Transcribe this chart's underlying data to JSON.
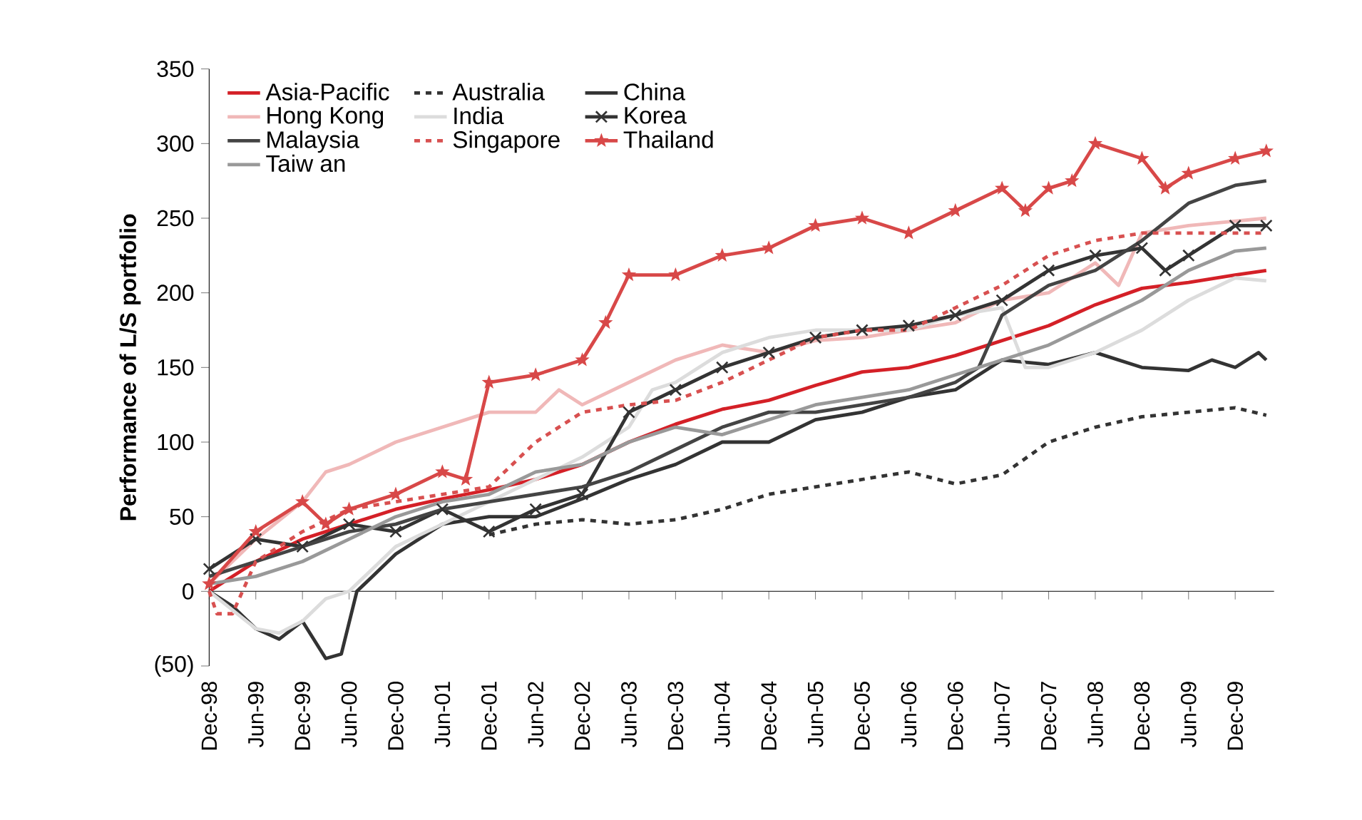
{
  "chart_data": {
    "type": "line",
    "ylabel": "Performance of L/S portfolio",
    "legend": "top left",
    "xlim": [
      "1998-12",
      "2010-05"
    ],
    "xticks": [
      {
        "value": "1998-12",
        "label": "Dec-98"
      },
      {
        "value": "1999-06",
        "label": "Jun-99"
      },
      {
        "value": "1999-12",
        "label": "Dec-99"
      },
      {
        "value": "2000-06",
        "label": "Jun-00"
      },
      {
        "value": "2000-12",
        "label": "Dec-00"
      },
      {
        "value": "2001-06",
        "label": "Jun-01"
      },
      {
        "value": "2001-12",
        "label": "Dec-01"
      },
      {
        "value": "2002-06",
        "label": "Jun-02"
      },
      {
        "value": "2002-12",
        "label": "Dec-02"
      },
      {
        "value": "2003-06",
        "label": "Jun-03"
      },
      {
        "value": "2003-12",
        "label": "Dec-03"
      },
      {
        "value": "2004-06",
        "label": "Jun-04"
      },
      {
        "value": "2004-12",
        "label": "Dec-04"
      },
      {
        "value": "2005-06",
        "label": "Jun-05"
      },
      {
        "value": "2005-12",
        "label": "Dec-05"
      },
      {
        "value": "2006-06",
        "label": "Jun-06"
      },
      {
        "value": "2006-12",
        "label": "Dec-06"
      },
      {
        "value": "2007-06",
        "label": "Jun-07"
      },
      {
        "value": "2007-12",
        "label": "Dec-07"
      },
      {
        "value": "2008-06",
        "label": "Jun-08"
      },
      {
        "value": "2008-12",
        "label": "Dec-08"
      },
      {
        "value": "2009-06",
        "label": "Jun-09"
      },
      {
        "value": "2009-12",
        "label": "Dec-09"
      }
    ],
    "ylim": [
      -50,
      350
    ],
    "yticks": [
      {
        "value": -50,
        "label": "(50)"
      },
      0,
      50,
      100,
      150,
      200,
      250,
      300,
      350
    ],
    "series": [
      {
        "name": "Asia-Pacific",
        "color": "#d42027",
        "x": [
          "1998-12",
          "1999-06",
          "1999-12",
          "2000-06",
          "2000-12",
          "2001-06",
          "2001-12",
          "2002-06",
          "2002-12",
          "2003-06",
          "2003-12",
          "2004-06",
          "2004-12",
          "2005-06",
          "2005-12",
          "2006-06",
          "2006-12",
          "2007-06",
          "2007-12",
          "2008-06",
          "2008-12",
          "2009-06",
          "2009-12",
          "2010-04"
        ],
        "values": [
          0,
          20,
          35,
          45,
          55,
          62,
          68,
          75,
          85,
          100,
          112,
          122,
          128,
          138,
          147,
          150,
          158,
          168,
          178,
          192,
          203,
          207,
          212,
          215
        ]
      },
      {
        "name": "Australia",
        "color": "#333333",
        "line_style": "dashed",
        "x": [
          "2001-12",
          "2002-06",
          "2002-12",
          "2003-06",
          "2003-12",
          "2004-06",
          "2004-12",
          "2005-06",
          "2005-12",
          "2006-06",
          "2006-12",
          "2007-06",
          "2007-12",
          "2008-06",
          "2008-12",
          "2009-06",
          "2009-12",
          "2010-04"
        ],
        "values": [
          38,
          45,
          48,
          45,
          48,
          55,
          65,
          70,
          75,
          80,
          72,
          78,
          100,
          110,
          117,
          120,
          123,
          118
        ]
      },
      {
        "name": "China",
        "color": "#333333",
        "x": [
          "1998-12",
          "1999-03",
          "1999-06",
          "1999-09",
          "1999-12",
          "2000-03",
          "2000-05",
          "2000-07",
          "2000-09",
          "2000-12",
          "2001-06",
          "2001-12",
          "2002-06",
          "2002-12",
          "2003-06",
          "2003-12",
          "2004-06",
          "2004-12",
          "2005-06",
          "2005-12",
          "2006-06",
          "2006-12",
          "2007-06",
          "2007-12",
          "2008-06",
          "2008-12",
          "2009-06",
          "2009-09",
          "2009-12",
          "2010-03",
          "2010-04"
        ],
        "values": [
          0,
          -10,
          -25,
          -32,
          -20,
          -45,
          -42,
          0,
          10,
          25,
          45,
          50,
          50,
          62,
          75,
          85,
          100,
          100,
          115,
          120,
          130,
          135,
          155,
          152,
          160,
          150,
          148,
          155,
          150,
          160,
          155
        ]
      },
      {
        "name": "Hong Kong",
        "color": "#f0b8b8",
        "x": [
          "1998-12",
          "1999-06",
          "1999-12",
          "2000-03",
          "2000-06",
          "2000-12",
          "2001-06",
          "2001-12",
          "2002-06",
          "2002-09",
          "2002-12",
          "2003-06",
          "2003-12",
          "2004-06",
          "2004-12",
          "2005-06",
          "2005-12",
          "2006-06",
          "2006-12",
          "2007-06",
          "2007-12",
          "2008-06",
          "2008-09",
          "2008-12",
          "2009-06",
          "2009-12",
          "2010-04"
        ],
        "values": [
          5,
          35,
          60,
          80,
          85,
          100,
          110,
          120,
          120,
          135,
          125,
          140,
          155,
          165,
          160,
          168,
          170,
          175,
          180,
          195,
          200,
          220,
          205,
          240,
          245,
          248,
          250
        ]
      },
      {
        "name": "India",
        "color": "#dcdcdc",
        "x": [
          "1998-12",
          "1999-06",
          "1999-09",
          "1999-12",
          "2000-03",
          "2000-06",
          "2000-09",
          "2000-12",
          "2001-06",
          "2001-12",
          "2002-06",
          "2002-12",
          "2003-06",
          "2003-09",
          "2003-12",
          "2004-06",
          "2004-12",
          "2005-06",
          "2005-12",
          "2006-06",
          "2006-12",
          "2007-06",
          "2007-09",
          "2007-12",
          "2008-06",
          "2008-12",
          "2009-06",
          "2009-12",
          "2010-04"
        ],
        "values": [
          0,
          -25,
          -28,
          -20,
          -5,
          0,
          15,
          30,
          45,
          60,
          75,
          90,
          110,
          135,
          140,
          160,
          170,
          175,
          175,
          175,
          185,
          190,
          150,
          150,
          160,
          175,
          195,
          210,
          208
        ]
      },
      {
        "name": "Korea",
        "color": "#333333",
        "marker": "cross",
        "x": [
          "1998-12",
          "1999-06",
          "1999-12",
          "2000-06",
          "2000-12",
          "2001-06",
          "2001-12",
          "2002-06",
          "2002-12",
          "2003-06",
          "2003-12",
          "2004-06",
          "2004-12",
          "2005-06",
          "2005-12",
          "2006-06",
          "2006-12",
          "2007-06",
          "2007-12",
          "2008-06",
          "2008-12",
          "2009-03",
          "2009-06",
          "2009-12",
          "2010-04"
        ],
        "values": [
          15,
          35,
          30,
          45,
          40,
          55,
          40,
          55,
          65,
          120,
          135,
          150,
          160,
          170,
          175,
          178,
          185,
          195,
          215,
          225,
          230,
          215,
          225,
          245,
          245
        ]
      },
      {
        "name": "Malaysia",
        "color": "#444444",
        "x": [
          "1998-12",
          "1999-06",
          "1999-12",
          "2000-06",
          "2000-12",
          "2001-06",
          "2001-12",
          "2002-06",
          "2002-12",
          "2003-06",
          "2003-12",
          "2004-06",
          "2004-12",
          "2005-06",
          "2005-12",
          "2006-06",
          "2006-12",
          "2007-03",
          "2007-06",
          "2007-12",
          "2008-06",
          "2008-12",
          "2009-06",
          "2009-12",
          "2010-04"
        ],
        "values": [
          10,
          20,
          30,
          40,
          45,
          55,
          60,
          65,
          70,
          80,
          95,
          110,
          120,
          120,
          125,
          130,
          140,
          150,
          185,
          205,
          215,
          235,
          260,
          272,
          275
        ]
      },
      {
        "name": "Singapore",
        "color": "#d85050",
        "line_style": "dashed",
        "x": [
          "1998-12",
          "1999-01",
          "1999-03",
          "1999-06",
          "1999-12",
          "2000-06",
          "2000-12",
          "2001-06",
          "2001-12",
          "2002-06",
          "2002-12",
          "2003-06",
          "2003-12",
          "2004-06",
          "2004-12",
          "2005-06",
          "2005-12",
          "2006-06",
          "2006-12",
          "2007-06",
          "2007-09",
          "2007-12",
          "2008-06",
          "2008-12",
          "2009-06",
          "2009-12",
          "2010-04"
        ],
        "values": [
          0,
          -15,
          -15,
          20,
          40,
          55,
          60,
          65,
          70,
          100,
          120,
          125,
          128,
          140,
          155,
          170,
          175,
          175,
          190,
          205,
          215,
          225,
          235,
          240,
          240,
          240,
          240
        ]
      },
      {
        "name": "Thailand",
        "color": "#d84848",
        "marker": "star",
        "x": [
          "1998-12",
          "1999-06",
          "1999-12",
          "2000-03",
          "2000-06",
          "2000-12",
          "2001-06",
          "2001-09",
          "2001-12",
          "2002-06",
          "2002-12",
          "2003-03",
          "2003-06",
          "2003-12",
          "2004-06",
          "2004-12",
          "2005-06",
          "2005-12",
          "2006-06",
          "2006-12",
          "2007-06",
          "2007-09",
          "2007-12",
          "2008-03",
          "2008-06",
          "2008-12",
          "2009-03",
          "2009-06",
          "2009-12",
          "2010-04"
        ],
        "values": [
          5,
          40,
          60,
          45,
          55,
          65,
          80,
          75,
          140,
          145,
          155,
          180,
          212,
          212,
          225,
          230,
          245,
          250,
          240,
          255,
          270,
          255,
          270,
          275,
          300,
          290,
          270,
          280,
          290,
          295
        ]
      },
      {
        "name": "Taiw an",
        "color": "#999999",
        "x": [
          "1998-12",
          "1999-06",
          "1999-12",
          "2000-06",
          "2000-12",
          "2001-06",
          "2001-12",
          "2002-06",
          "2002-12",
          "2003-06",
          "2003-12",
          "2004-06",
          "2004-12",
          "2005-06",
          "2005-12",
          "2006-06",
          "2006-12",
          "2007-06",
          "2007-12",
          "2008-06",
          "2008-12",
          "2009-06",
          "2009-12",
          "2010-04"
        ],
        "values": [
          5,
          10,
          20,
          35,
          50,
          60,
          65,
          80,
          85,
          100,
          110,
          105,
          115,
          125,
          130,
          135,
          145,
          155,
          165,
          180,
          195,
          215,
          228,
          230
        ]
      }
    ]
  }
}
